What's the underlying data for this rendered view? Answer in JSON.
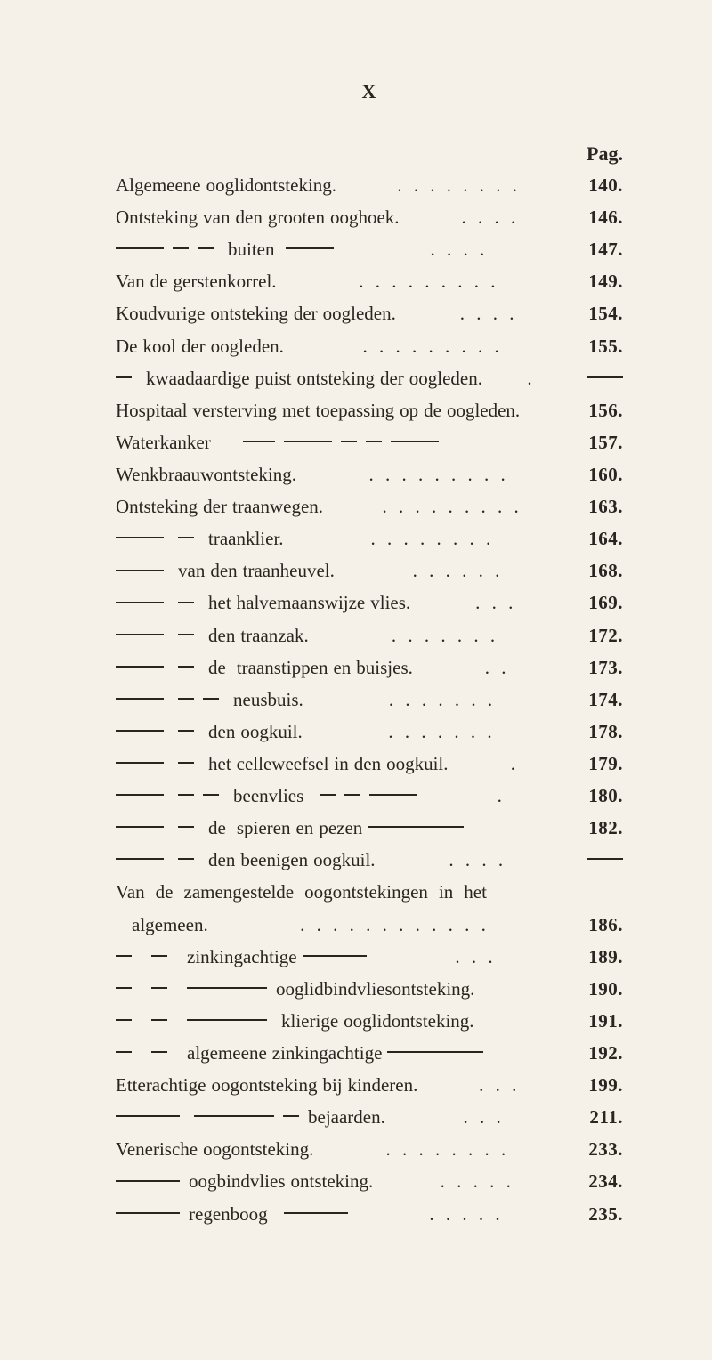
{
  "page_numeral": "X",
  "header": "Pag.",
  "text_color": "#2a2520",
  "background_color": "#f5f1e8",
  "font_family": "Georgia, Times New Roman, serif",
  "base_font_size_pt": 16,
  "line_height": 1.72,
  "entries": [
    {
      "text": "Algemeene ooglidontsteking.",
      "page": "140."
    },
    {
      "text": "Ontsteking van den grooten ooghoek.",
      "page": "146."
    },
    {
      "text": "——— — —  buiten  ———",
      "page": "147."
    },
    {
      "text": "Van de gerstenkorrel.",
      "page": "149."
    },
    {
      "text": "Koudvurige ontsteking der oogleden.",
      "page": "154."
    },
    {
      "text": "De kool der oogleden.",
      "page": "155."
    },
    {
      "text": "—  kwaadaardige puist ontsteking der oogleden.",
      "page": "——"
    },
    {
      "text": "Hospitaal versterving met toepassing op de oogleden.",
      "page": "156."
    },
    {
      "text": "Waterkanker      —— ——— — — ———",
      "page": "157."
    },
    {
      "text": "Wenkbraauwontsteking.",
      "page": "160."
    },
    {
      "text": "Ontsteking der traanwegen.",
      "page": "163."
    },
    {
      "text": "———  —  traanklier.",
      "page": "164."
    },
    {
      "text": "———  van den traanheuvel.",
      "page": "168."
    },
    {
      "text": "———  —  het halvemaanswijze vlies.",
      "page": "169."
    },
    {
      "text": "———  —  den traanzak.",
      "page": "172."
    },
    {
      "text": "———  —  de  traanstippen en buisjes.",
      "page": "173."
    },
    {
      "text": "———  — —  neusbuis.",
      "page": "174."
    },
    {
      "text": "———  —  den oogkuil.",
      "page": "178."
    },
    {
      "text": "———  —  het celleweefsel in den oogkuil.",
      "page": "179."
    },
    {
      "text": "———  — —  beenvlies   — — ———",
      "page": "180."
    },
    {
      "text": "———  —  de  spieren en pezen ——————",
      "page": "182."
    },
    {
      "text": "———  —  den beenigen oogkuil.",
      "page": "——"
    },
    {
      "text": "Van  de  zamengestelde  oogontstekingen  in  het",
      "page": ""
    },
    {
      "text": "   algemeen.",
      "page": "186."
    },
    {
      "text": "—   —   zinkingachtige ————",
      "page": "189."
    },
    {
      "text": "—   —   ————— ooglidbindvliesontsteking.",
      "page": "190."
    },
    {
      "text": "—   —   —————  klierige ooglidontsteking.",
      "page": "191."
    },
    {
      "text": "—   —   algemeene zinkingachtige ——————",
      "page": "192."
    },
    {
      "text": "Etterachtige oogontsteking bij kinderen.",
      "page": "199."
    },
    {
      "text": "————  ————— — bejaarden.",
      "page": "211."
    },
    {
      "text": "Venerische oogontsteking.",
      "page": "233."
    },
    {
      "text": "———— oogbindvlies ontsteking.",
      "page": "234."
    },
    {
      "text": "———— regenboog   ————",
      "page": "235."
    }
  ],
  "fills": [
    ". . . . . . . .",
    ". . . .",
    " . . . .",
    ". . . . . . . . .",
    " . . . .",
    ". . . . . . . . .",
    "  .  ",
    " ",
    " ",
    ". . . . . . . . .",
    ". . . . . . . . .",
    " . . . . . . . .",
    " . . . . . .",
    " . . .",
    " . . . . . . .",
    " . .",
    " . . . . . . .",
    " . . . . . . .",
    " .",
    " .",
    " ",
    " . . . .",
    "",
    " . . . . . . . . . . . .",
    "  . . .",
    " ",
    " ",
    " ",
    "  . . .",
    " . . .",
    " . . . . . . . .",
    " . . . . .",
    "  . . . . ."
  ]
}
